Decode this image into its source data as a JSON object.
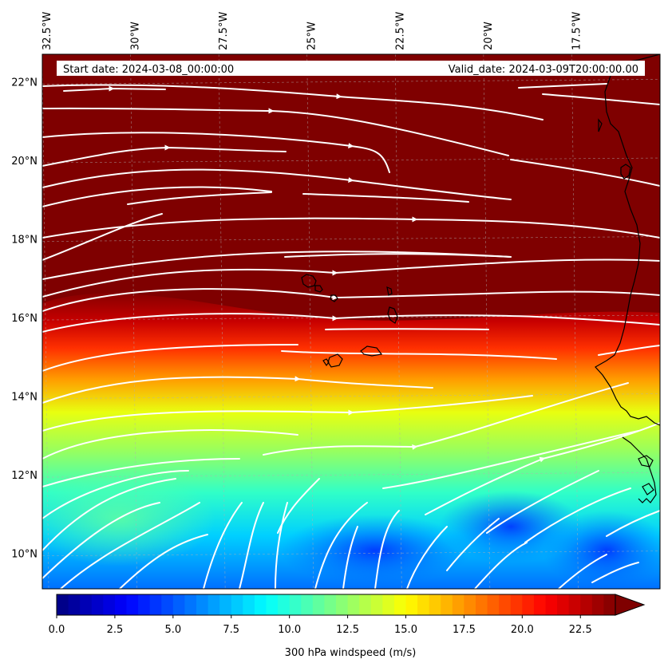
{
  "map": {
    "start_date": "Start date: 2024-03-08_00:00:00",
    "valid_date": "Valid_date: 2024-03-09T20:00:00.00",
    "lon_ticks": [
      "32.5°W",
      "30°W",
      "27.5°W",
      "25°W",
      "22.5°W",
      "20°W",
      "17.5°W"
    ],
    "lat_ticks": [
      "22°N",
      "20°N",
      "18°N",
      "16°N",
      "14°N",
      "12°N",
      "10°N"
    ],
    "lon_tick_values": [
      -32.5,
      -30,
      -27.5,
      -25,
      -22.5,
      -20,
      -17.5
    ],
    "lat_tick_values": [
      22,
      20,
      18,
      16,
      14,
      12,
      10
    ],
    "extent": {
      "lon_min": -32.5,
      "lon_max": -15.0,
      "lat_min": 9.1,
      "lat_max": 22.7
    },
    "field": "300 hPa windspeed",
    "gridlines": true
  },
  "colorbar": {
    "label": "300 hPa windspeed (m/s)",
    "ticks": [
      "0.0",
      "2.5",
      "5.0",
      "7.5",
      "10.0",
      "12.5",
      "15.0",
      "17.5",
      "20.0",
      "22.5"
    ],
    "tick_values": [
      0,
      2.5,
      5,
      7.5,
      10,
      12.5,
      15,
      17.5,
      20,
      22.5
    ],
    "range": [
      0,
      24
    ],
    "extend": "max",
    "colormap": "jet"
  },
  "colors": {
    "max_speed": "#7f0000",
    "streamline": "#ffffff",
    "coastline": "#000000"
  }
}
